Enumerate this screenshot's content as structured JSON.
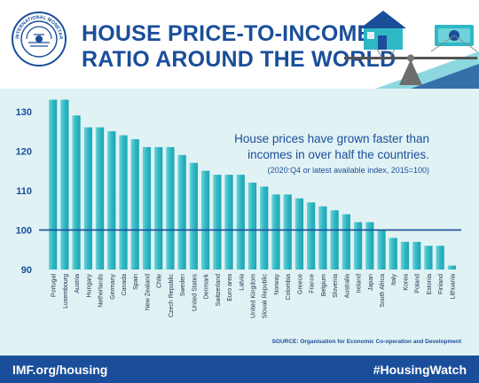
{
  "header": {
    "logo_text": "INTERNATIONAL MONETARY FUND",
    "title_line1": "HOUSE PRICE-TO-INCOME",
    "title_line2": "RATIO AROUND THE WORLD"
  },
  "annotation": {
    "line1": "House prices have grown faster than",
    "line2": "incomes in over half the countries.",
    "note": "(2020:Q4 or latest available index, 2015=100)"
  },
  "source": "SOURCE: Organisation for Economic Co-operation and Development",
  "footer": {
    "left": "IMF.org/housing",
    "right": "#HousingWatch"
  },
  "colors": {
    "navy": "#1a4e9a",
    "bar": "#2fb8c4",
    "bar_light": "#6fd3da",
    "plot_bg": "#e1f2f4"
  },
  "chart_data": {
    "type": "bar",
    "categories": [
      "Portugal",
      "Luxembourg",
      "Austria",
      "Hungary",
      "Netherlands",
      "Germany",
      "Canada",
      "Spain",
      "New Zealand",
      "Chile",
      "Czech Republic",
      "Sweden",
      "United States",
      "Denmark",
      "Switzerland",
      "Euro area",
      "Latvia",
      "United Kingdom",
      "Slovak Republic",
      "Norway",
      "Colombia",
      "Greece",
      "France",
      "Belgium",
      "Slovenia",
      "Australia",
      "Ireland",
      "Japan",
      "South Africa",
      "Italy",
      "Korea",
      "Poland",
      "Estonia",
      "Finland",
      "Lithuania"
    ],
    "values": [
      133,
      133,
      129,
      126,
      126,
      125,
      124,
      123,
      121,
      121,
      121,
      119,
      117,
      115,
      114,
      114,
      114,
      112,
      111,
      109,
      109,
      108,
      107,
      106,
      105,
      104,
      102,
      102,
      100,
      98,
      97,
      97,
      96,
      96,
      91
    ],
    "yticks": [
      90,
      100,
      110,
      120,
      130
    ],
    "ylim": [
      90,
      134
    ],
    "reference_line": 100,
    "grid": false
  }
}
